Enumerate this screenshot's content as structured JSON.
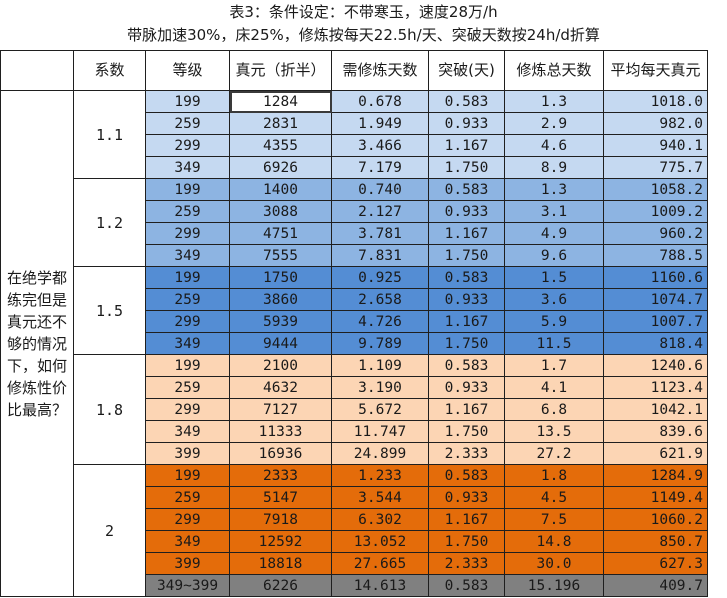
{
  "title_line1": "表3：条件设定：不带寒玉，速度28万/h",
  "title_line2": "带脉加速30%，床25%，修炼按每天22.5h/天、突破天数按24h/d折算",
  "headers": [
    "系数",
    "等级",
    "真元（折半）",
    "需修炼天数",
    "突破(天)",
    "修炼总天数",
    "平均每天真元"
  ],
  "question": "在绝学都练完但是真元还不够的情况下，如何修炼性价比最高？",
  "groups": [
    {
      "coef": "1.1",
      "color": "#c5d9f1",
      "rows": [
        [
          "199",
          "1284",
          "0.678",
          "0.583",
          "1.3",
          "1018.0"
        ],
        [
          "259",
          "2831",
          "1.949",
          "0.933",
          "2.9",
          "982.0"
        ],
        [
          "299",
          "4355",
          "3.466",
          "1.167",
          "4.6",
          "940.1"
        ],
        [
          "349",
          "6926",
          "7.179",
          "1.750",
          "8.9",
          "775.7"
        ]
      ]
    },
    {
      "coef": "1.2",
      "color": "#8db4e2",
      "rows": [
        [
          "199",
          "1400",
          "0.740",
          "0.583",
          "1.3",
          "1058.2"
        ],
        [
          "259",
          "3088",
          "2.127",
          "0.933",
          "3.1",
          "1009.2"
        ],
        [
          "299",
          "4751",
          "3.781",
          "1.167",
          "4.9",
          "960.2"
        ],
        [
          "349",
          "7555",
          "7.831",
          "1.750",
          "9.6",
          "788.5"
        ]
      ]
    },
    {
      "coef": "1.5",
      "color": "#548dd4",
      "rows": [
        [
          "199",
          "1750",
          "0.925",
          "0.583",
          "1.5",
          "1160.6"
        ],
        [
          "259",
          "3860",
          "2.658",
          "0.933",
          "3.6",
          "1074.7"
        ],
        [
          "299",
          "5939",
          "4.726",
          "1.167",
          "5.9",
          "1007.7"
        ],
        [
          "349",
          "9444",
          "9.789",
          "1.750",
          "11.5",
          "818.4"
        ]
      ]
    },
    {
      "coef": "1.8",
      "color": "#fcd5b4",
      "rows": [
        [
          "199",
          "2100",
          "1.109",
          "0.583",
          "1.7",
          "1240.6"
        ],
        [
          "259",
          "4632",
          "3.190",
          "0.933",
          "4.1",
          "1123.4"
        ],
        [
          "299",
          "7127",
          "5.672",
          "1.167",
          "6.8",
          "1042.1"
        ],
        [
          "349",
          "11333",
          "11.747",
          "1.750",
          "13.5",
          "839.6"
        ],
        [
          "399",
          "16936",
          "24.899",
          "2.333",
          "27.2",
          "621.9"
        ]
      ]
    },
    {
      "coef": "2",
      "color": "#e46c0a",
      "rows": [
        [
          "199",
          "2333",
          "1.233",
          "0.583",
          "1.8",
          "1284.9"
        ],
        [
          "259",
          "5147",
          "3.544",
          "0.933",
          "4.5",
          "1149.4"
        ],
        [
          "299",
          "7918",
          "6.302",
          "1.167",
          "7.5",
          "1060.2"
        ],
        [
          "349",
          "12592",
          "13.052",
          "1.750",
          "14.8",
          "850.7"
        ],
        [
          "399",
          "18818",
          "27.665",
          "2.333",
          "30.0",
          "627.3"
        ],
        [
          "349~399",
          "6226",
          "14.613",
          "0.583",
          "15.196",
          "409.7"
        ]
      ]
    }
  ],
  "last_row_color": "#808080",
  "selected_cell_color": "#ffffff"
}
